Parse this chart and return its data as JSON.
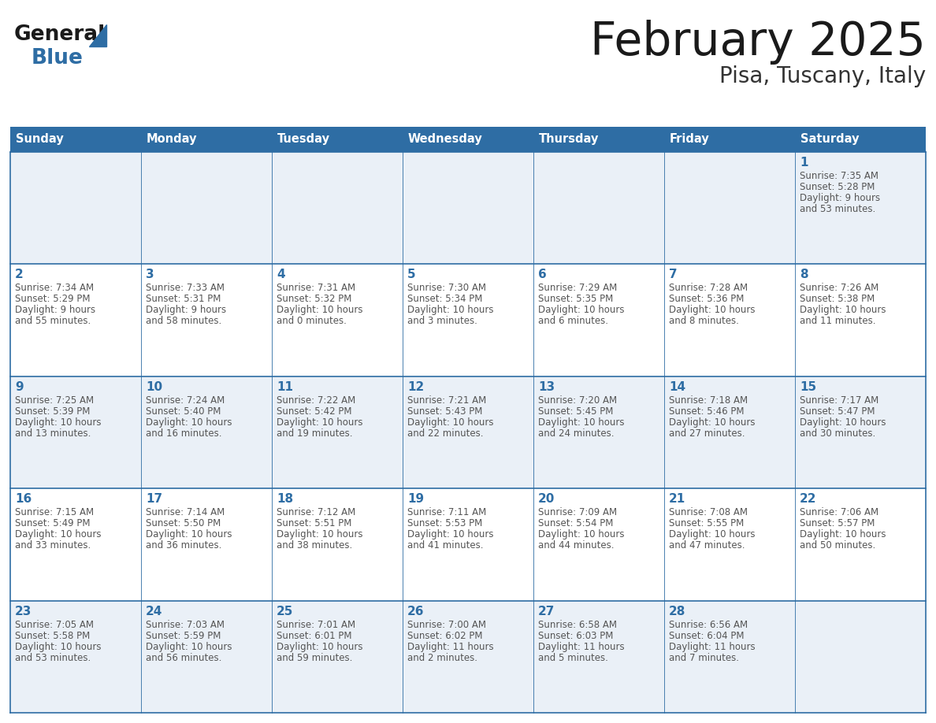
{
  "title": "February 2025",
  "subtitle": "Pisa, Tuscany, Italy",
  "days_of_week": [
    "Sunday",
    "Monday",
    "Tuesday",
    "Wednesday",
    "Thursday",
    "Friday",
    "Saturday"
  ],
  "header_bg": "#2e6da4",
  "header_text_color": "#ffffff",
  "cell_border_color": "#2e6da4",
  "cell_bg_odd": "#eaf0f7",
  "cell_bg_even": "#ffffff",
  "day_number_color": "#2e6da4",
  "text_color": "#555555",
  "title_color": "#1a1a1a",
  "subtitle_color": "#333333",
  "logo_general_color": "#1a1a1a",
  "logo_blue_color": "#2e6da4",
  "calendar_data": [
    {
      "week": 0,
      "day_of_week": 6,
      "date": 1,
      "sunrise": "7:35 AM",
      "sunset": "5:28 PM",
      "daylight": "9 hours and 53 minutes."
    },
    {
      "week": 1,
      "day_of_week": 0,
      "date": 2,
      "sunrise": "7:34 AM",
      "sunset": "5:29 PM",
      "daylight": "9 hours and 55 minutes."
    },
    {
      "week": 1,
      "day_of_week": 1,
      "date": 3,
      "sunrise": "7:33 AM",
      "sunset": "5:31 PM",
      "daylight": "9 hours and 58 minutes."
    },
    {
      "week": 1,
      "day_of_week": 2,
      "date": 4,
      "sunrise": "7:31 AM",
      "sunset": "5:32 PM",
      "daylight": "10 hours and 0 minutes."
    },
    {
      "week": 1,
      "day_of_week": 3,
      "date": 5,
      "sunrise": "7:30 AM",
      "sunset": "5:34 PM",
      "daylight": "10 hours and 3 minutes."
    },
    {
      "week": 1,
      "day_of_week": 4,
      "date": 6,
      "sunrise": "7:29 AM",
      "sunset": "5:35 PM",
      "daylight": "10 hours and 6 minutes."
    },
    {
      "week": 1,
      "day_of_week": 5,
      "date": 7,
      "sunrise": "7:28 AM",
      "sunset": "5:36 PM",
      "daylight": "10 hours and 8 minutes."
    },
    {
      "week": 1,
      "day_of_week": 6,
      "date": 8,
      "sunrise": "7:26 AM",
      "sunset": "5:38 PM",
      "daylight": "10 hours and 11 minutes."
    },
    {
      "week": 2,
      "day_of_week": 0,
      "date": 9,
      "sunrise": "7:25 AM",
      "sunset": "5:39 PM",
      "daylight": "10 hours and 13 minutes."
    },
    {
      "week": 2,
      "day_of_week": 1,
      "date": 10,
      "sunrise": "7:24 AM",
      "sunset": "5:40 PM",
      "daylight": "10 hours and 16 minutes."
    },
    {
      "week": 2,
      "day_of_week": 2,
      "date": 11,
      "sunrise": "7:22 AM",
      "sunset": "5:42 PM",
      "daylight": "10 hours and 19 minutes."
    },
    {
      "week": 2,
      "day_of_week": 3,
      "date": 12,
      "sunrise": "7:21 AM",
      "sunset": "5:43 PM",
      "daylight": "10 hours and 22 minutes."
    },
    {
      "week": 2,
      "day_of_week": 4,
      "date": 13,
      "sunrise": "7:20 AM",
      "sunset": "5:45 PM",
      "daylight": "10 hours and 24 minutes."
    },
    {
      "week": 2,
      "day_of_week": 5,
      "date": 14,
      "sunrise": "7:18 AM",
      "sunset": "5:46 PM",
      "daylight": "10 hours and 27 minutes."
    },
    {
      "week": 2,
      "day_of_week": 6,
      "date": 15,
      "sunrise": "7:17 AM",
      "sunset": "5:47 PM",
      "daylight": "10 hours and 30 minutes."
    },
    {
      "week": 3,
      "day_of_week": 0,
      "date": 16,
      "sunrise": "7:15 AM",
      "sunset": "5:49 PM",
      "daylight": "10 hours and 33 minutes."
    },
    {
      "week": 3,
      "day_of_week": 1,
      "date": 17,
      "sunrise": "7:14 AM",
      "sunset": "5:50 PM",
      "daylight": "10 hours and 36 minutes."
    },
    {
      "week": 3,
      "day_of_week": 2,
      "date": 18,
      "sunrise": "7:12 AM",
      "sunset": "5:51 PM",
      "daylight": "10 hours and 38 minutes."
    },
    {
      "week": 3,
      "day_of_week": 3,
      "date": 19,
      "sunrise": "7:11 AM",
      "sunset": "5:53 PM",
      "daylight": "10 hours and 41 minutes."
    },
    {
      "week": 3,
      "day_of_week": 4,
      "date": 20,
      "sunrise": "7:09 AM",
      "sunset": "5:54 PM",
      "daylight": "10 hours and 44 minutes."
    },
    {
      "week": 3,
      "day_of_week": 5,
      "date": 21,
      "sunrise": "7:08 AM",
      "sunset": "5:55 PM",
      "daylight": "10 hours and 47 minutes."
    },
    {
      "week": 3,
      "day_of_week": 6,
      "date": 22,
      "sunrise": "7:06 AM",
      "sunset": "5:57 PM",
      "daylight": "10 hours and 50 minutes."
    },
    {
      "week": 4,
      "day_of_week": 0,
      "date": 23,
      "sunrise": "7:05 AM",
      "sunset": "5:58 PM",
      "daylight": "10 hours and 53 minutes."
    },
    {
      "week": 4,
      "day_of_week": 1,
      "date": 24,
      "sunrise": "7:03 AM",
      "sunset": "5:59 PM",
      "daylight": "10 hours and 56 minutes."
    },
    {
      "week": 4,
      "day_of_week": 2,
      "date": 25,
      "sunrise": "7:01 AM",
      "sunset": "6:01 PM",
      "daylight": "10 hours and 59 minutes."
    },
    {
      "week": 4,
      "day_of_week": 3,
      "date": 26,
      "sunrise": "7:00 AM",
      "sunset": "6:02 PM",
      "daylight": "11 hours and 2 minutes."
    },
    {
      "week": 4,
      "day_of_week": 4,
      "date": 27,
      "sunrise": "6:58 AM",
      "sunset": "6:03 PM",
      "daylight": "11 hours and 5 minutes."
    },
    {
      "week": 4,
      "day_of_week": 5,
      "date": 28,
      "sunrise": "6:56 AM",
      "sunset": "6:04 PM",
      "daylight": "11 hours and 7 minutes."
    }
  ],
  "num_weeks": 5,
  "figsize": [
    11.88,
    9.18
  ],
  "dpi": 100
}
